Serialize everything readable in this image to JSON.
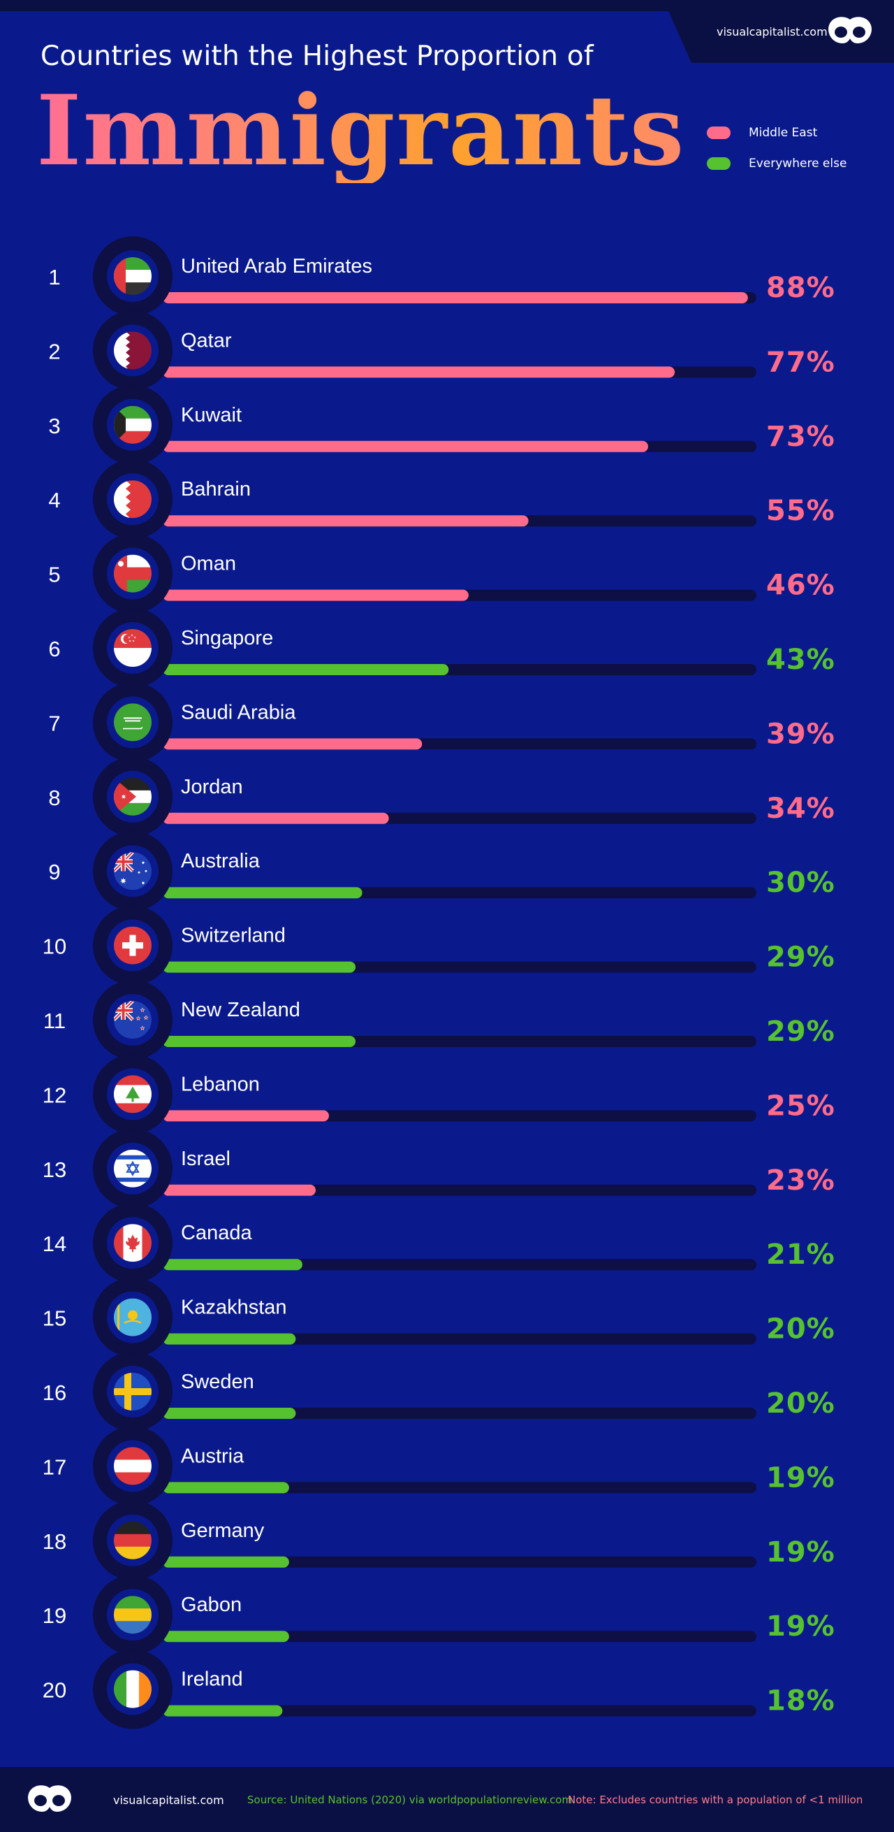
{
  "header": {
    "brand": "visualcapitalist.com",
    "subtitle": "Countries with the Highest Proportion of",
    "title": "Immigrants"
  },
  "legend": [
    {
      "label": "Middle East",
      "color": "#ff6b8b"
    },
    {
      "label": "Everywhere else",
      "color": "#57c22f"
    }
  ],
  "colors": {
    "background": "#0a1a8c",
    "track": "#0d0f45",
    "middle_east": "#ff6b8b",
    "everywhere_else": "#57c22f",
    "flag_ring": "#0d0f45"
  },
  "chart_data": {
    "type": "bar",
    "orientation": "horizontal",
    "xlim": [
      0,
      100
    ],
    "value_suffix": "%",
    "categories": [
      "United Arab Emirates",
      "Qatar",
      "Kuwait",
      "Bahrain",
      "Oman",
      "Singapore",
      "Saudi Arabia",
      "Jordan",
      "Australia",
      "Switzerland",
      "New Zealand",
      "Lebanon",
      "Israel",
      "Canada",
      "Kazakhstan",
      "Sweden",
      "Austria",
      "Germany",
      "Gabon",
      "Ireland"
    ],
    "ranks": [
      1,
      2,
      3,
      4,
      5,
      6,
      7,
      8,
      9,
      10,
      11,
      12,
      13,
      14,
      15,
      16,
      17,
      18,
      19,
      20
    ],
    "values": [
      88,
      77,
      73,
      55,
      46,
      43,
      39,
      34,
      30,
      29,
      29,
      25,
      23,
      21,
      20,
      20,
      19,
      19,
      19,
      18
    ],
    "groups": [
      "Middle East",
      "Middle East",
      "Middle East",
      "Middle East",
      "Middle East",
      "Everywhere else",
      "Middle East",
      "Middle East",
      "Everywhere else",
      "Everywhere else",
      "Everywhere else",
      "Middle East",
      "Middle East",
      "Everywhere else",
      "Everywhere else",
      "Everywhere else",
      "Everywhere else",
      "Everywhere else",
      "Everywhere else",
      "Everywhere else"
    ],
    "flag_icons": [
      "uae-flag-icon",
      "qatar-flag-icon",
      "kuwait-flag-icon",
      "bahrain-flag-icon",
      "oman-flag-icon",
      "singapore-flag-icon",
      "saudi-arabia-flag-icon",
      "jordan-flag-icon",
      "australia-flag-icon",
      "switzerland-flag-icon",
      "new-zealand-flag-icon",
      "lebanon-flag-icon",
      "israel-flag-icon",
      "canada-flag-icon",
      "kazakhstan-flag-icon",
      "sweden-flag-icon",
      "austria-flag-icon",
      "germany-flag-icon",
      "gabon-flag-icon",
      "ireland-flag-icon"
    ]
  },
  "footer": {
    "brand": "visualcapitalist.com",
    "source": "Source: United Nations (2020) via worldpopulationreview.com",
    "note": "Note: Excludes countries with a population of <1 million"
  }
}
